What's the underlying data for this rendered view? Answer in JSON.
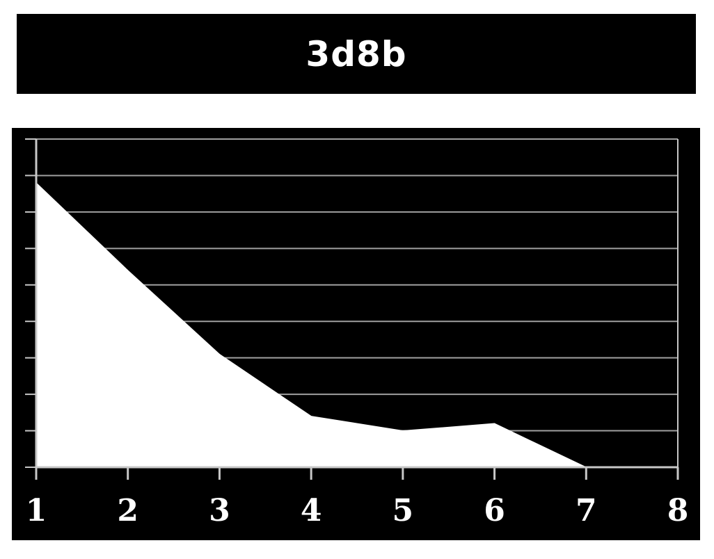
{
  "chart_data": {
    "type": "area",
    "title": "3d8b",
    "x": [
      1,
      2,
      3,
      4,
      5,
      6,
      7
    ],
    "y": [
      7.8,
      5.4,
      3.1,
      1.4,
      1.0,
      1.2,
      0.0
    ],
    "x_ticks": [
      "1",
      "2",
      "3",
      "4",
      "5",
      "6",
      "7",
      "8"
    ],
    "xlim": [
      1,
      8
    ],
    "ylim": [
      0,
      9
    ],
    "y_tick_count": 9,
    "grid": true,
    "y_tick_labels_shown": false,
    "colors": {
      "background": "#000000",
      "fill": "#ffffff",
      "grid": "#a0a0a0",
      "axis": "#c8c8c8",
      "text": "#ffffff"
    }
  }
}
